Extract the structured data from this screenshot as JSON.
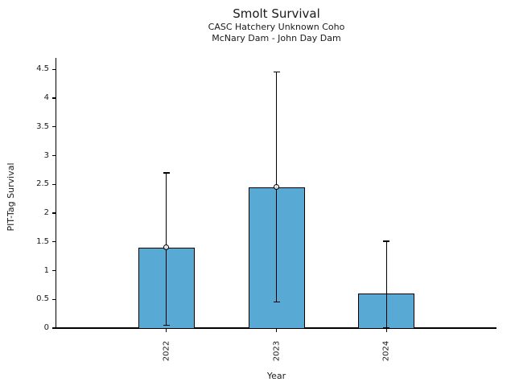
{
  "chart_data": {
    "type": "bar",
    "title": "Smolt Survival",
    "subtitle_line1": "CASC Hatchery Unknown Coho",
    "subtitle_line2": "McNary Dam - John Day Dam",
    "xlabel": "Year",
    "ylabel": "PIT-Tag Survival",
    "categories": [
      "2022",
      "2023",
      "2024"
    ],
    "values": [
      1.4,
      2.45,
      0.6
    ],
    "error_low": [
      0.05,
      0.45,
      0.0
    ],
    "error_high": [
      2.7,
      4.45,
      1.51
    ],
    "marker_shown": [
      true,
      true,
      false
    ],
    "yticks": [
      0,
      0.5,
      1,
      1.5,
      2,
      2.5,
      3,
      3.5,
      4,
      4.5
    ],
    "ylim": [
      0,
      4.7
    ],
    "xlim": [
      -1,
      3
    ],
    "grid": false,
    "legend": "none",
    "marker": "open-circle",
    "bar_color": "#58A9D4",
    "bar_edge_color": "#000000",
    "error_color": "#000000",
    "background_color": "#FFFFFF",
    "text_color": "#1A1A1A"
  }
}
